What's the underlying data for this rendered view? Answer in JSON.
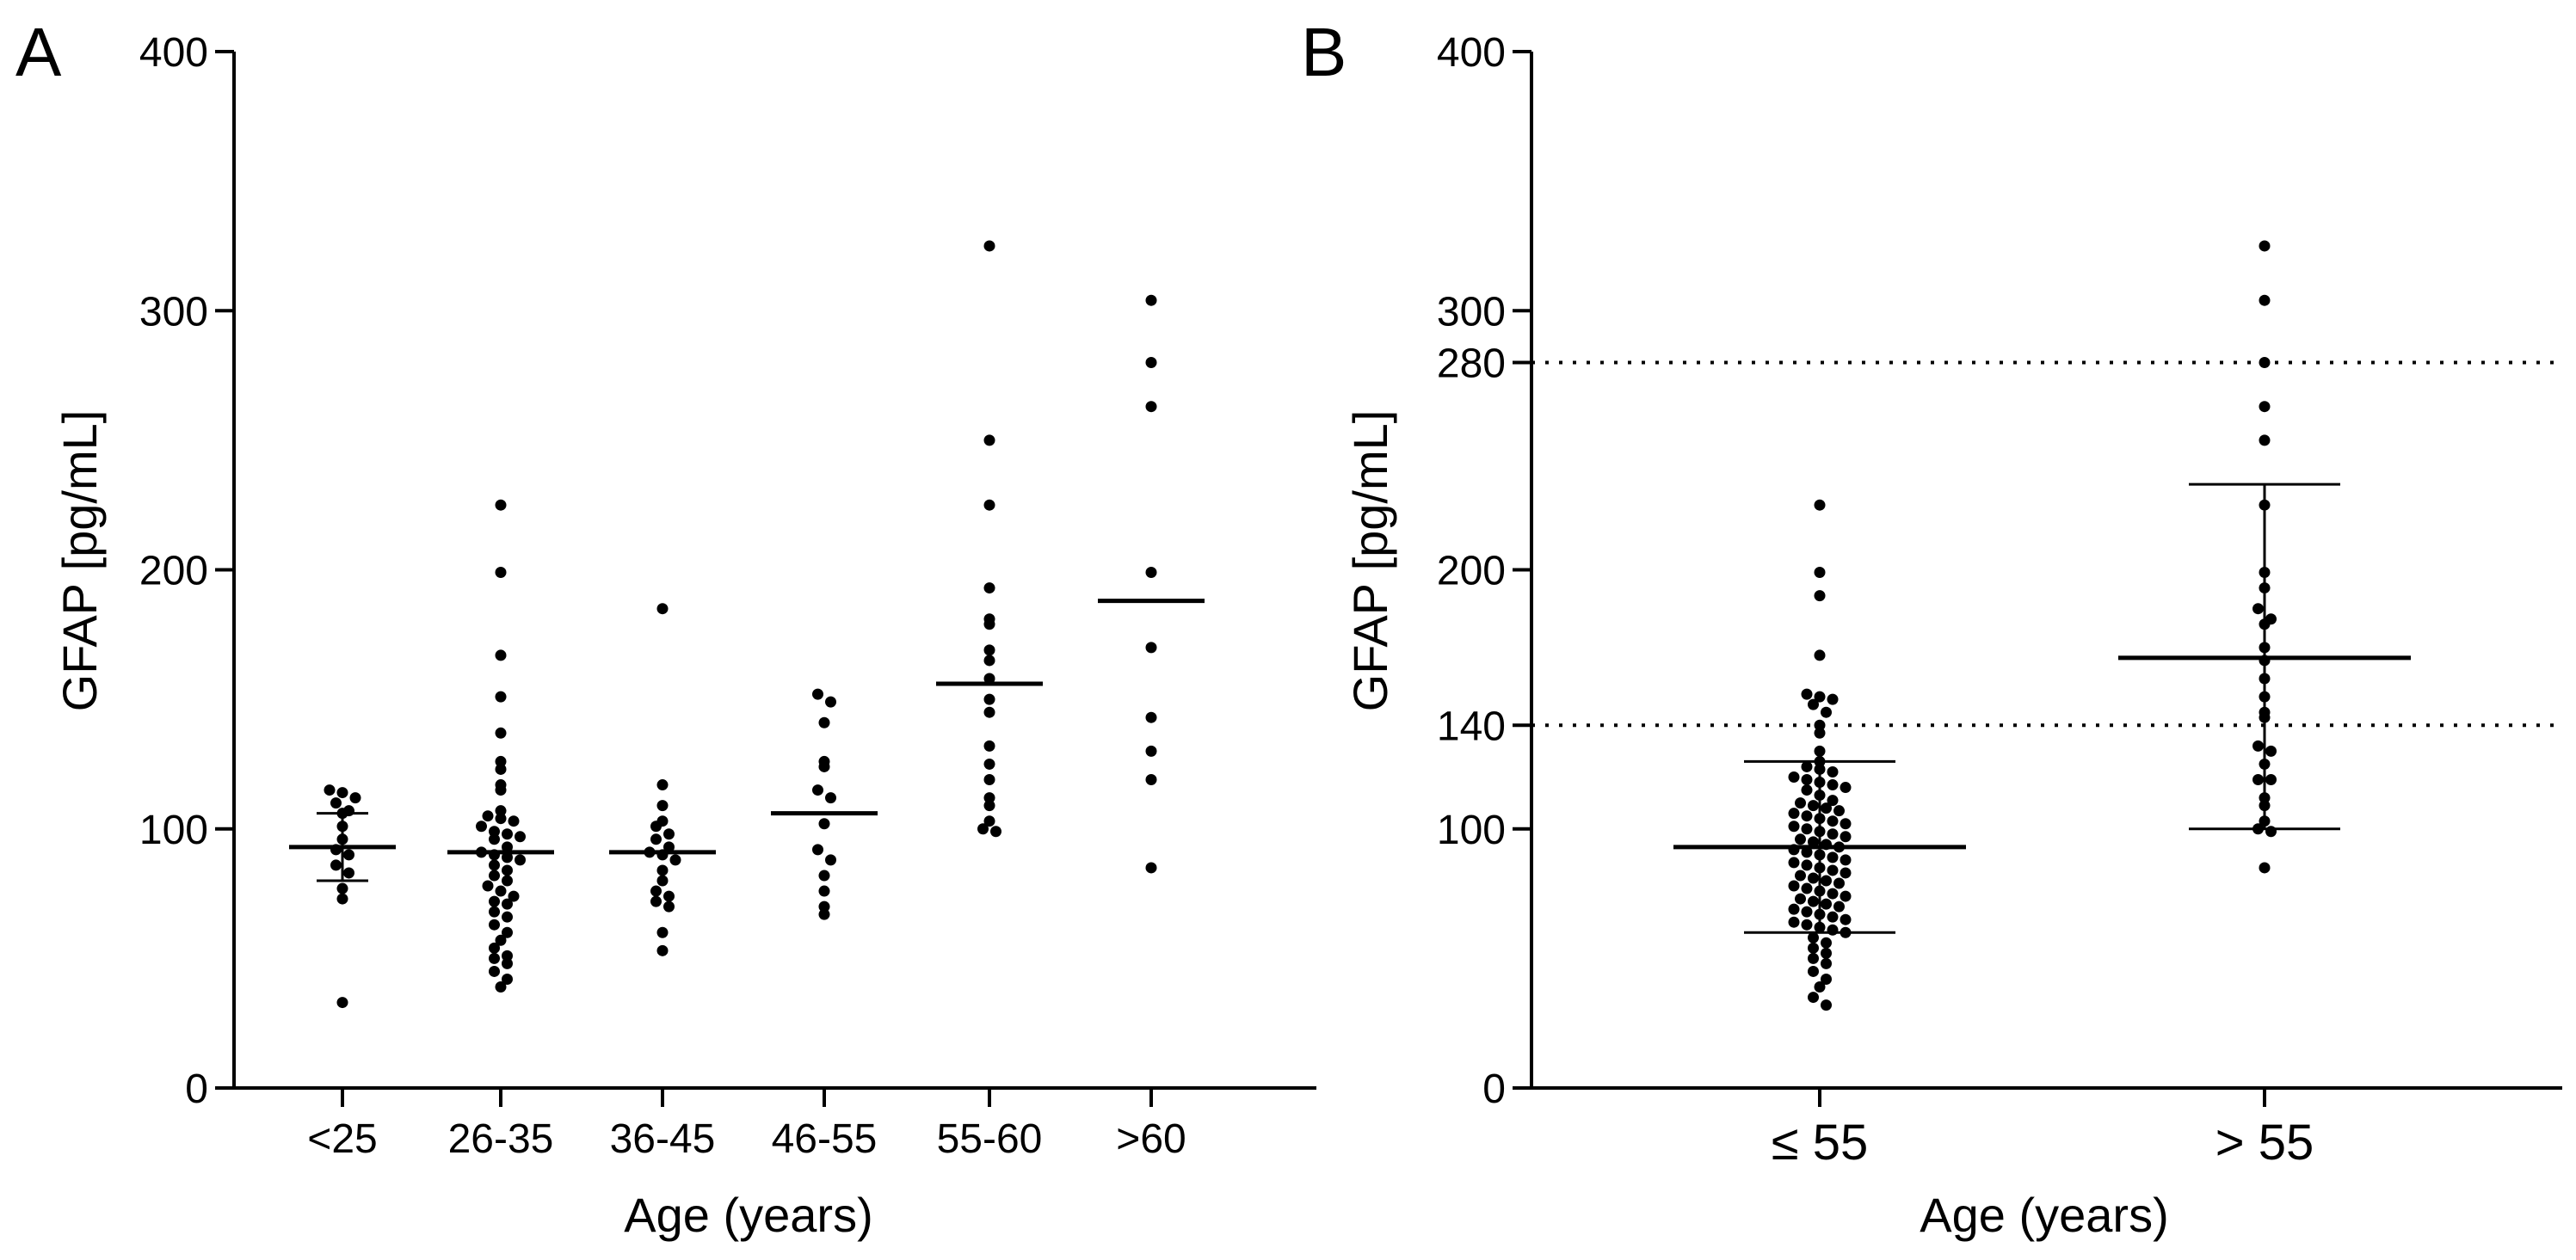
{
  "chart_data": [
    {
      "panel": "A",
      "type": "scatter",
      "subtype": "grouped dot plot",
      "xlabel": "Age (years)",
      "ylabel": "GFAP [pg/mL]",
      "ylim": [
        0,
        400
      ],
      "yticks": [
        0,
        100,
        200,
        300,
        400
      ],
      "categories": [
        "<25",
        "26-35",
        "36-45",
        "46-55",
        "55-60",
        ">60"
      ],
      "medians": [
        93,
        91,
        91,
        106,
        156,
        188
      ],
      "error_bars": [
        {
          "low": 80,
          "high": 106
        },
        null,
        null,
        null,
        null,
        null
      ],
      "points": [
        [
          115,
          114,
          112,
          110,
          107,
          106,
          101,
          96,
          92,
          90,
          86,
          83,
          77,
          73,
          33
        ],
        [
          225,
          199,
          167,
          151,
          137,
          126,
          123,
          117,
          115,
          107,
          105,
          104,
          103,
          101,
          99,
          98,
          97,
          96,
          93,
          91,
          90,
          89,
          88,
          86,
          84,
          82,
          80,
          78,
          76,
          74,
          72,
          71,
          68,
          66,
          63,
          60,
          57,
          54,
          51,
          50,
          48,
          45,
          42,
          39
        ],
        [
          185,
          117,
          109,
          103,
          101,
          98,
          96,
          93,
          91,
          90,
          88,
          84,
          80,
          76,
          74,
          72,
          70,
          60,
          53
        ],
        [
          152,
          149,
          141,
          126,
          124,
          115,
          112,
          102,
          92,
          88,
          82,
          76,
          70,
          67
        ],
        [
          325,
          250,
          225,
          193,
          181,
          179,
          169,
          165,
          158,
          150,
          145,
          132,
          125,
          119,
          112,
          109,
          103,
          100,
          99
        ],
        [
          304,
          280,
          263,
          199,
          170,
          143,
          130,
          119,
          85
        ]
      ]
    },
    {
      "panel": "B",
      "type": "scatter",
      "subtype": "grouped dot plot",
      "xlabel": "Age (years)",
      "ylabel": "GFAP [pg/mL]",
      "ylim": [
        0,
        400
      ],
      "yticks": [
        0,
        100,
        140,
        200,
        280,
        300,
        400
      ],
      "reference_lines": [
        140,
        280
      ],
      "categories": [
        "≤ 55",
        "> 55"
      ],
      "means": [
        93,
        166
      ],
      "error_bars": [
        {
          "low": 60,
          "high": 126
        },
        {
          "low": 100,
          "high": 233
        }
      ],
      "points": [
        [
          225,
          199,
          190,
          167,
          152,
          151,
          150,
          148,
          145,
          140,
          137,
          130,
          126,
          124,
          123,
          122,
          120,
          119,
          118,
          117,
          116,
          115,
          113,
          111,
          110,
          109,
          108,
          107,
          106,
          105,
          104,
          103,
          102,
          101,
          100,
          99,
          98,
          97,
          96,
          95,
          94,
          93,
          92,
          91,
          90,
          89,
          88,
          87,
          86,
          85,
          84,
          83,
          82,
          81,
          80,
          79,
          78,
          77,
          76,
          75,
          74,
          73,
          72,
          71,
          70,
          69,
          68,
          67,
          66,
          65,
          64,
          63,
          62,
          61,
          60,
          58,
          56,
          54,
          52,
          50,
          48,
          45,
          42,
          39,
          35,
          32
        ],
        [
          325,
          304,
          280,
          263,
          250,
          225,
          199,
          193,
          185,
          181,
          179,
          170,
          165,
          158,
          151,
          145,
          143,
          132,
          130,
          125,
          119,
          119,
          112,
          109,
          103,
          100,
          99,
          85
        ]
      ]
    }
  ]
}
